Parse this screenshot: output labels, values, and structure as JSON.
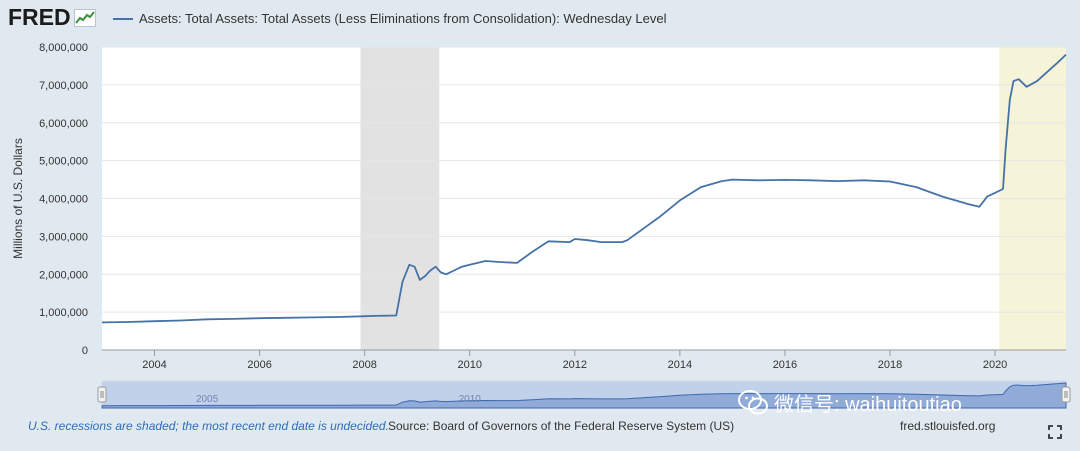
{
  "header": {
    "logo_text": "FRED",
    "legend_label": "Assets: Total Assets: Total Assets (Less Eliminations from Consolidation): Wednesday Level"
  },
  "chart_data": {
    "type": "line",
    "title": "Assets: Total Assets: Total Assets (Less Eliminations from Consolidation): Wednesday Level",
    "ylabel": "Millions of U.S. Dollars",
    "xlabel": "",
    "xlim": [
      2003.0,
      2021.35
    ],
    "ylim": [
      0,
      8000000
    ],
    "x_ticks": [
      "2004",
      "2006",
      "2008",
      "2010",
      "2012",
      "2014",
      "2016",
      "2018",
      "2020"
    ],
    "y_ticks": [
      "0",
      "1,000,000",
      "2,000,000",
      "3,000,000",
      "4,000,000",
      "5,000,000",
      "6,000,000",
      "7,000,000",
      "8,000,000"
    ],
    "grid": true,
    "recession_periods": [
      [
        2007.92,
        2009.42
      ]
    ],
    "undecided_recession_start": 2020.08,
    "series": [
      {
        "name": "Assets: Total Assets: Total Assets (Less Eliminations from Consolidation): Wednesday Level",
        "color": "#4572a7",
        "x": [
          2003.0,
          2003.5,
          2004.0,
          2004.5,
          2005.0,
          2005.5,
          2006.0,
          2006.5,
          2007.0,
          2007.5,
          2007.95,
          2008.2,
          2008.6,
          2008.72,
          2008.85,
          2008.95,
          2009.05,
          2009.15,
          2009.25,
          2009.35,
          2009.45,
          2009.55,
          2009.7,
          2009.85,
          2010.0,
          2010.3,
          2010.6,
          2010.9,
          2011.0,
          2011.2,
          2011.5,
          2011.9,
          2012.0,
          2012.25,
          2012.5,
          2012.9,
          2013.0,
          2013.3,
          2013.6,
          2014.0,
          2014.4,
          2014.8,
          2015.0,
          2015.5,
          2016.0,
          2016.5,
          2017.0,
          2017.5,
          2018.0,
          2018.5,
          2019.0,
          2019.5,
          2019.7,
          2019.85,
          2020.0,
          2020.15,
          2020.2,
          2020.28,
          2020.35,
          2020.45,
          2020.6,
          2020.8,
          2021.0,
          2021.2,
          2021.35
        ],
        "y": [
          730000,
          740000,
          760000,
          780000,
          810000,
          820000,
          840000,
          850000,
          860000,
          870000,
          890000,
          900000,
          910000,
          1800000,
          2250000,
          2200000,
          1850000,
          1950000,
          2100000,
          2200000,
          2050000,
          2000000,
          2100000,
          2200000,
          2250000,
          2350000,
          2320000,
          2300000,
          2400000,
          2600000,
          2870000,
          2850000,
          2930000,
          2900000,
          2850000,
          2850000,
          2900000,
          3200000,
          3500000,
          3950000,
          4300000,
          4460000,
          4500000,
          4480000,
          4490000,
          4480000,
          4460000,
          4480000,
          4450000,
          4300000,
          4050000,
          3850000,
          3780000,
          4050000,
          4150000,
          4250000,
          5300000,
          6600000,
          7100000,
          7150000,
          6950000,
          7100000,
          7350000,
          7600000,
          7800000
        ]
      }
    ]
  },
  "navigator": {
    "labels": [
      "2005",
      "2010"
    ],
    "color": "#7b9bd0"
  },
  "footer": {
    "recession_note": "U.S. recessions are shaded; the most recent end date is undecided.",
    "source": "Source: Board of Governors of the Federal Reserve System (US)",
    "link": "fred.stlouisfed.org"
  },
  "watermark": {
    "text": "微信号: waihuitoutiao"
  },
  "colors": {
    "series": "#4572a7",
    "recession": "#e2e2e2",
    "undecided_recession": "#f5f3d8",
    "background": "#e1e9f0"
  }
}
